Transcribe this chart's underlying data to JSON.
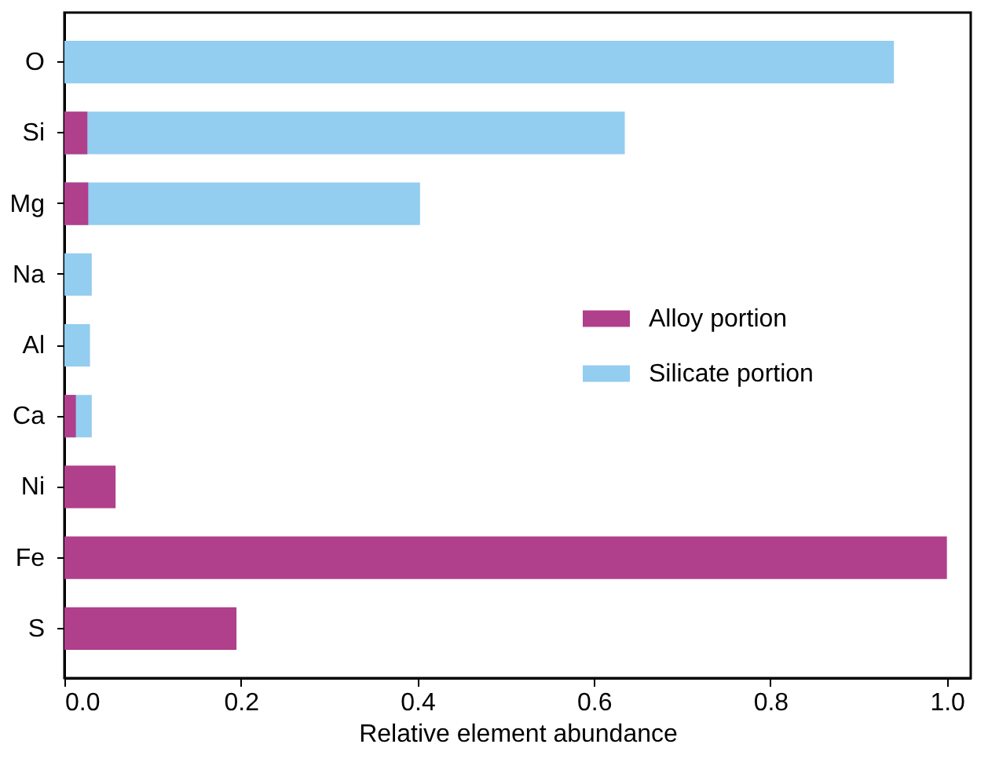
{
  "chart_data": {
    "type": "bar",
    "orientation": "horizontal",
    "xlabel": "Relative element abundance",
    "categories": [
      "O",
      "Si",
      "Mg",
      "Na",
      "Al",
      "Ca",
      "Ni",
      "Fe",
      "S"
    ],
    "series": [
      {
        "name": "Alloy portion",
        "color": "#b03f8c",
        "values": [
          null,
          0.026,
          0.027,
          null,
          null,
          0.013,
          0.058,
          1.0,
          0.195
        ]
      },
      {
        "name": "Silicate portion",
        "color": "#93cdf0",
        "values": [
          0.94,
          0.635,
          0.403,
          0.031,
          0.029,
          0.031,
          null,
          null,
          null
        ]
      }
    ],
    "xlim": [
      0,
      1.027
    ],
    "xticks": [
      {
        "value": 0,
        "label": "0.0"
      },
      {
        "value": 0.2,
        "label": "0.2"
      },
      {
        "value": 0.4,
        "label": "0.4"
      },
      {
        "value": 0.6,
        "label": "0.6"
      },
      {
        "value": 0.8,
        "label": "0.8"
      },
      {
        "value": 1.0,
        "label": "1.0"
      }
    ],
    "grid": false,
    "legend": "right"
  }
}
